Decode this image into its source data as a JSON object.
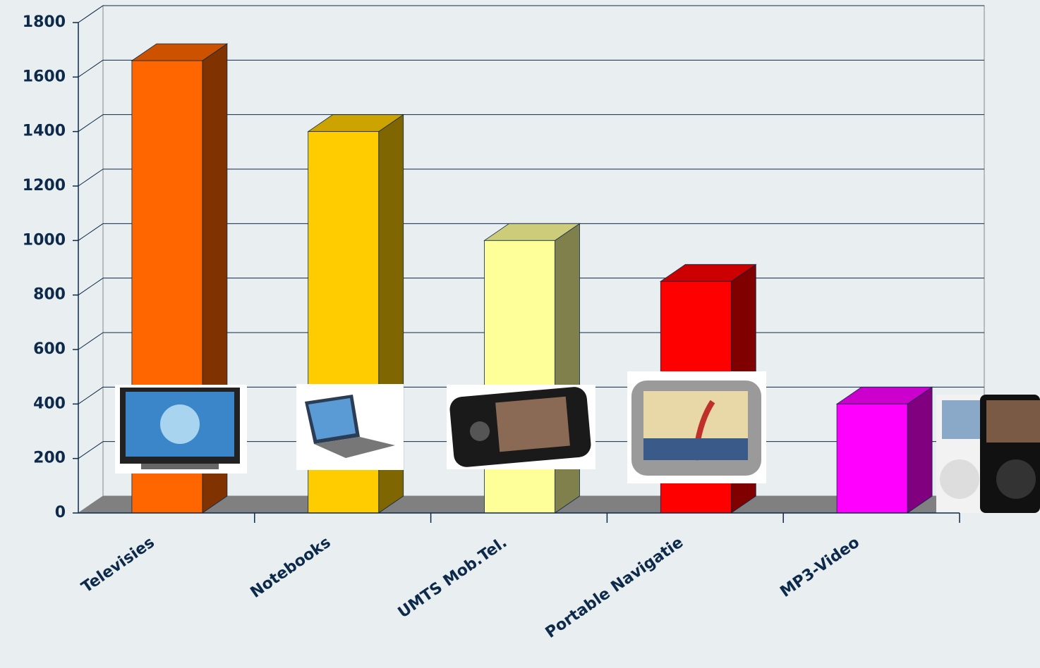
{
  "chart_data": {
    "type": "bar3d",
    "categories": [
      "Televisies",
      "Notebooks",
      "UMTS Mob.Tel.",
      "Portable Navigatie",
      "MP3-Video"
    ],
    "values": [
      1660,
      1400,
      1000,
      850,
      400
    ],
    "colors": [
      "#ff6600",
      "#ffcc00",
      "#ffff99",
      "#ff0000",
      "#ff00ff"
    ],
    "ylim": [
      0,
      1800
    ],
    "yticks": [
      0,
      200,
      400,
      600,
      800,
      1000,
      1200,
      1400,
      1600,
      1800
    ],
    "grid": true
  }
}
